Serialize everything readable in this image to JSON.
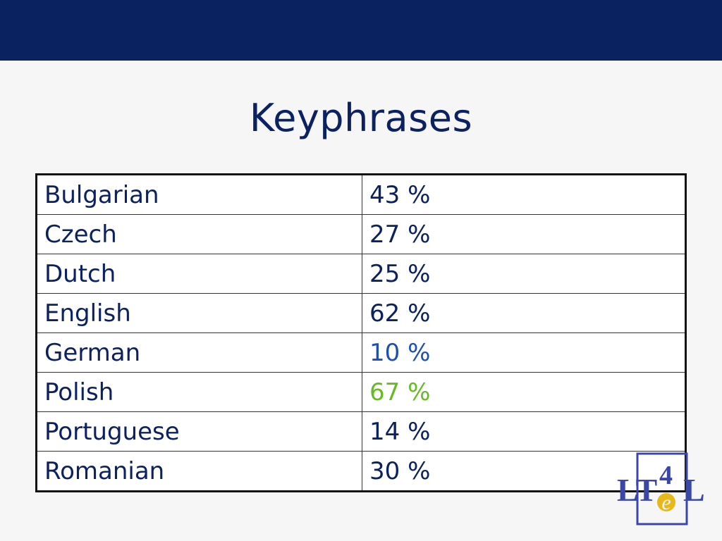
{
  "slide": {
    "title": "Keyphrases"
  },
  "table": {
    "rows": [
      {
        "language": "Bulgarian",
        "value": "43 %",
        "color": "#0b2161"
      },
      {
        "language": "Czech",
        "value": "27 %",
        "color": "#0b2161"
      },
      {
        "language": "Dutch",
        "value": "25 %",
        "color": "#0b2161"
      },
      {
        "language": "English",
        "value": "62 %",
        "color": "#0b2161"
      },
      {
        "language": "German",
        "value": "10 %",
        "color": "#1f4fb2"
      },
      {
        "language": "Polish",
        "value": "67 %",
        "color": "#66bb22"
      },
      {
        "language": "Portuguese",
        "value": "14 %",
        "color": "#0b2161"
      },
      {
        "language": "Romanian",
        "value": "30 %",
        "color": "#0b2161"
      }
    ]
  },
  "logo": {
    "text": "LT4eL",
    "primary_color": "#3b47a8",
    "accent_color": "#e8b81a"
  },
  "colors": {
    "header_bar": "#0a2260",
    "text": "#0b2161",
    "background": "#f6f6f6"
  }
}
